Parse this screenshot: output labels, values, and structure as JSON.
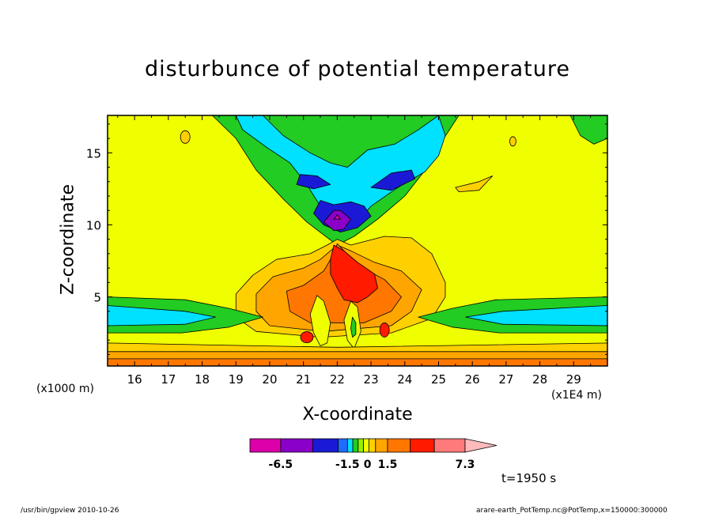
{
  "chart_data": {
    "type": "heatmap",
    "title": "disturbunce of potential temperature",
    "xlabel": "X-coordinate",
    "ylabel": "Z-coordinate",
    "x_unit_label": "(x1E4 m)",
    "y_unit_label": "(x1000 m)",
    "xlim": [
      15.2,
      30.0
    ],
    "ylim": [
      0.2,
      17.6
    ],
    "x_ticks": [
      "16",
      "17",
      "18",
      "19",
      "20",
      "21",
      "22",
      "23",
      "24",
      "25",
      "26",
      "27",
      "28",
      "29"
    ],
    "y_ticks": [
      "5",
      "10",
      "15"
    ],
    "time_label": "t=1950 s",
    "colorbar": {
      "tick_labels": [
        "-6.5",
        "-1.5",
        "0",
        "1.5",
        "7.3"
      ],
      "tick_values": [
        -6.5,
        -1.5,
        0,
        1.5,
        7.3
      ],
      "colors": [
        "#dd00aa",
        "#8a00c8",
        "#1a1ad6",
        "#1e6cff",
        "#00e0ff",
        "#22cc22",
        "#99ee00",
        "#f0ff00",
        "#ffd000",
        "#ffa500",
        "#ff7700",
        "#ff1a00",
        "#ff7a7a",
        "#ffbbbb"
      ],
      "extend": "max"
    },
    "features": [
      {
        "name": "background",
        "level": "near zero",
        "color": "#f0ff00"
      },
      {
        "name": "upper negative lobes",
        "region": "x 19-26, z 8-17.6",
        "min_level": -6.5
      },
      {
        "name": "lower warm plume",
        "region": "x 19.3-24.5, z 0.2-9",
        "max_level": 7.3
      },
      {
        "name": "side cold bands",
        "region": "z 2.5-5, x<19.5 and x>24.5"
      }
    ]
  },
  "footer": {
    "left": "/usr/bin/gpview   2010-10-26",
    "right": "arare-earth_PotTemp.nc@PotTemp,x=150000:300000"
  }
}
